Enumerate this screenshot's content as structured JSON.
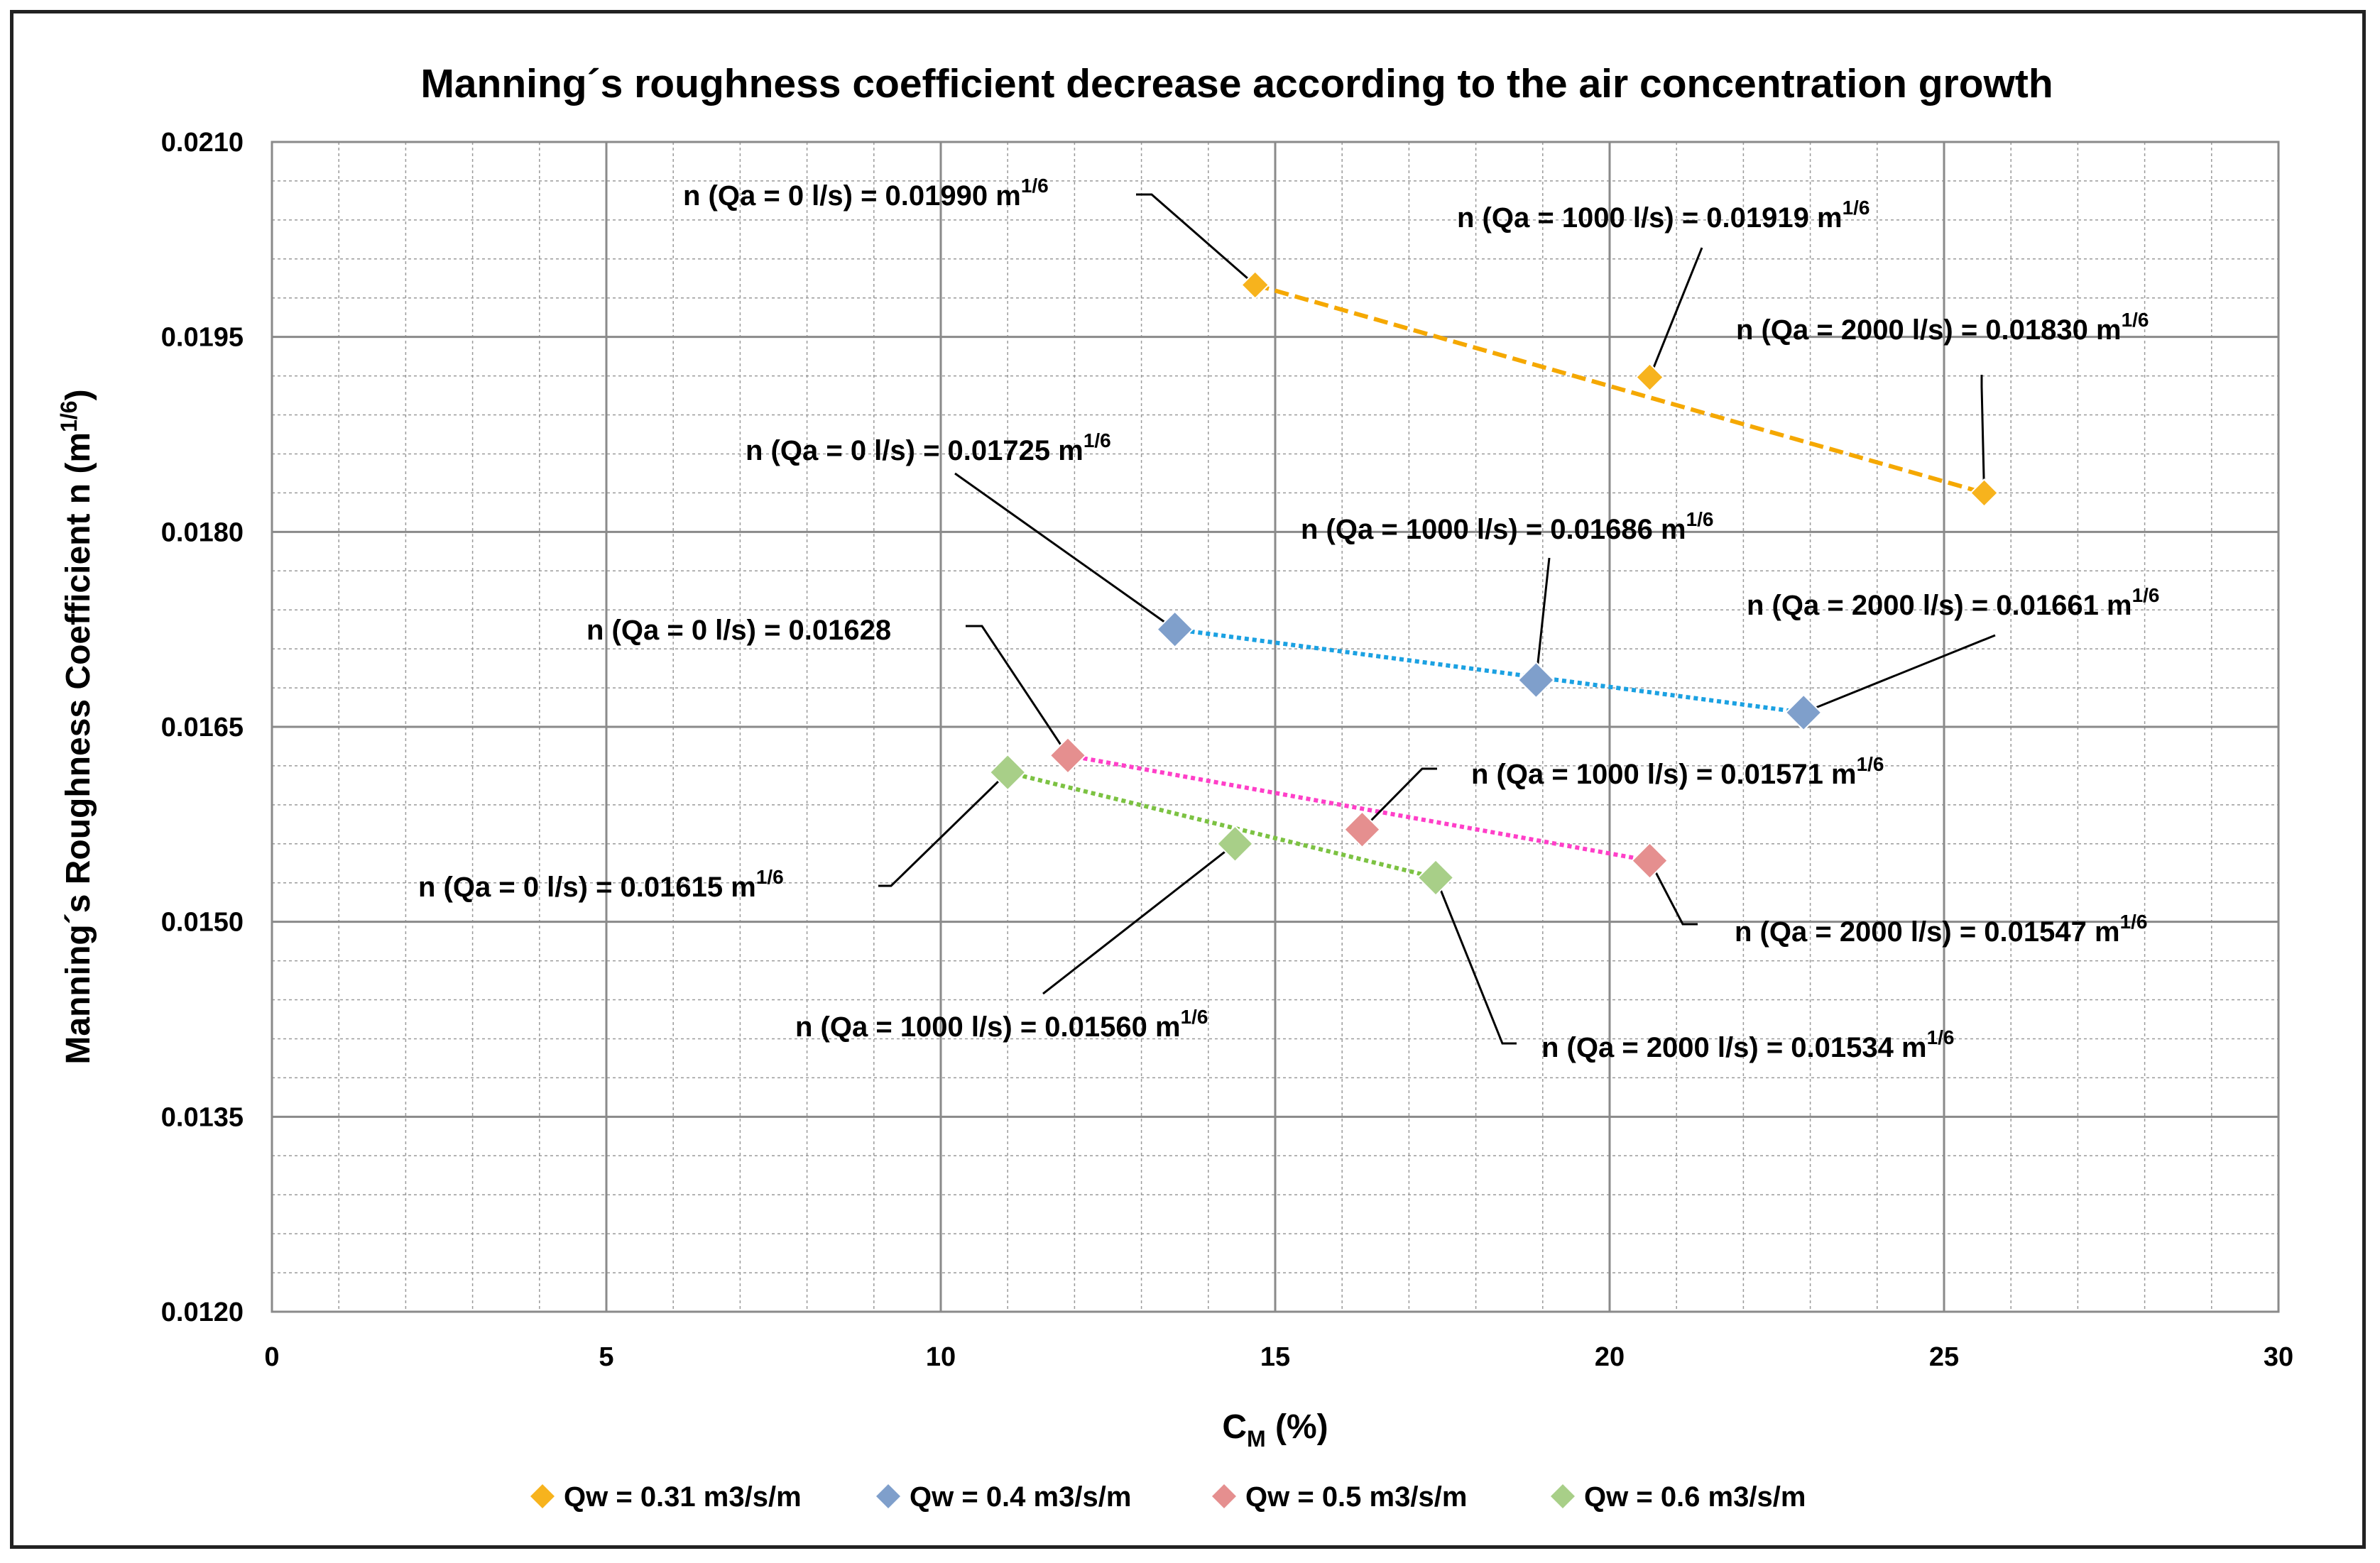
{
  "chart_data": {
    "type": "scatter",
    "title": "Manning´s roughness coefficient decrease according to the air concentration growth",
    "xlabel_main": "C",
    "xlabel_sub": "M",
    "xlabel_rest": " (%)",
    "ylabel_main": "Manning´s Roughness Coefficient n (m",
    "ylabel_sup": "1/6",
    "ylabel_end": ")",
    "xlim": [
      0,
      30
    ],
    "ylim": [
      0.012,
      0.021
    ],
    "x_ticks": [
      0,
      5,
      10,
      15,
      20,
      25,
      30
    ],
    "x_tick_labels": [
      "0",
      "5",
      "10",
      "15",
      "20",
      "25",
      "30"
    ],
    "y_ticks": [
      0.012,
      0.0135,
      0.015,
      0.0165,
      0.018,
      0.0195,
      0.021
    ],
    "y_tick_labels": [
      "0.0120",
      "0.0135",
      "0.0150",
      "0.0165",
      "0.0180",
      "0.0195",
      "0.0210"
    ],
    "x_minor_step": 1,
    "y_minor_step": 0.0003,
    "grid": true,
    "legend_position": "bottom",
    "series": [
      {
        "name": "Qw = 0.31 m3/s/m",
        "color": "#F5A800",
        "marker_color": "#F7B31D",
        "trend_style": "dashed",
        "points": [
          {
            "x": 14.7,
            "y": 0.0199
          },
          {
            "x": 20.6,
            "y": 0.01919
          },
          {
            "x": 25.6,
            "y": 0.0183
          }
        ]
      },
      {
        "name": "Qw = 0.4 m3/s/m",
        "color": "#1BA1E2",
        "marker_color": "#7F9FCB",
        "trend_style": "dotted",
        "points": [
          {
            "x": 13.5,
            "y": 0.01725
          },
          {
            "x": 18.9,
            "y": 0.01686
          },
          {
            "x": 22.9,
            "y": 0.01661
          }
        ]
      },
      {
        "name": "Qw = 0.5 m3/s/m",
        "color": "#FF3FC8",
        "marker_color": "#E58F8F",
        "trend_style": "dotted",
        "points": [
          {
            "x": 11.9,
            "y": 0.01628
          },
          {
            "x": 16.3,
            "y": 0.01571
          },
          {
            "x": 20.6,
            "y": 0.01547
          }
        ]
      },
      {
        "name": "Qw = 0.6 m3/s/m",
        "color": "#7CC242",
        "marker_color": "#A8CF88",
        "trend_style": "dotted",
        "points": [
          {
            "x": 11.0,
            "y": 0.01615
          },
          {
            "x": 14.4,
            "y": 0.0156
          },
          {
            "x": 17.4,
            "y": 0.01534
          }
        ]
      }
    ],
    "annotations": [
      {
        "main": "n (Qa = 0 l/s) = 0.01990 m",
        "sup": "1/6",
        "series": 0,
        "point": 0
      },
      {
        "main": "n (Qa = 1000 l/s) = 0.01919 m",
        "sup": "1/6",
        "series": 0,
        "point": 1
      },
      {
        "main": "n (Qa = 2000 l/s) = 0.01830 m",
        "sup": "1/6",
        "series": 0,
        "point": 2
      },
      {
        "main": "n (Qa = 0 l/s) = 0.01725 m",
        "sup": "1/6",
        "series": 1,
        "point": 0
      },
      {
        "main": "n (Qa = 1000 l/s) = 0.01686 m",
        "sup": "1/6",
        "series": 1,
        "point": 1
      },
      {
        "main": "n (Qa = 2000 l/s) = 0.01661 m",
        "sup": "1/6",
        "series": 1,
        "point": 2
      },
      {
        "main": "n (Qa = 0 l/s) = 0.01628",
        "sup": "",
        "series": 2,
        "point": 0
      },
      {
        "main": "n (Qa = 1000 l/s) = 0.01571 m",
        "sup": "1/6",
        "series": 2,
        "point": 1
      },
      {
        "main": "n (Qa = 2000 l/s) = 0.01547 m",
        "sup": "1/6",
        "series": 2,
        "point": 2
      },
      {
        "main": "n (Qa = 0 l/s) = 0.01615 m",
        "sup": "1/6",
        "series": 3,
        "point": 0
      },
      {
        "main": "n (Qa = 1000 l/s) = 0.01560 m",
        "sup": "1/6",
        "series": 3,
        "point": 1
      },
      {
        "main": "n (Qa = 2000 l/s) = 0.01534 m",
        "sup": "1/6",
        "series": 3,
        "point": 2
      }
    ]
  }
}
